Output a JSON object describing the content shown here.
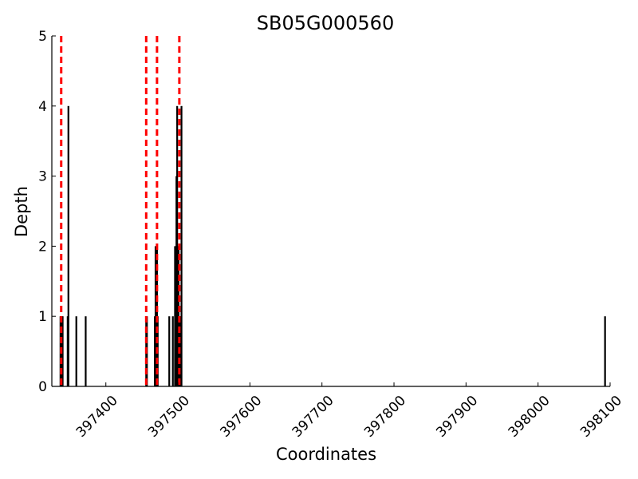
{
  "chart_data": {
    "type": "bar",
    "title": "SB05G000560",
    "xlabel": "Coordinates",
    "ylabel": "Depth",
    "xlim": [
      397325,
      398100
    ],
    "ylim": [
      0,
      5
    ],
    "x_ticks": [
      397400,
      397500,
      397600,
      397700,
      397800,
      397900,
      398000,
      398100
    ],
    "x_tick_labels": [
      "397400",
      "397500",
      "397600",
      "397700",
      "397800",
      "397900",
      "398000",
      "398100"
    ],
    "y_ticks": [
      0,
      1,
      2,
      3,
      4,
      5
    ],
    "y_tick_labels": [
      "0",
      "1",
      "2",
      "3",
      "4",
      "5"
    ],
    "grid": false,
    "bar_color": "#000000",
    "marker_color": "#ff0000",
    "series": [
      {
        "x": [
          397337,
          397338,
          397339,
          397340,
          397347,
          397348,
          397359,
          397372,
          397456,
          397457,
          397468,
          397469,
          397470,
          397471,
          397472,
          397488,
          397493,
          397496,
          397497,
          397498,
          397499,
          397500,
          397501,
          397502,
          397504,
          397505,
          398093
        ],
        "values": [
          1,
          1,
          1,
          1,
          1,
          4,
          1,
          1,
          1,
          1,
          1,
          2,
          2,
          2,
          1,
          1,
          1,
          2,
          2,
          3,
          4,
          2,
          2,
          1,
          1,
          4,
          1
        ]
      }
    ],
    "vertical_markers": [
      397338,
      397456,
      397471,
      397502
    ]
  }
}
